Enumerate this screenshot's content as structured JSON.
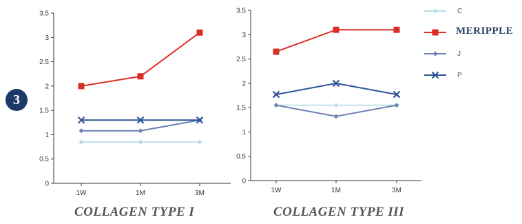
{
  "badge": {
    "number": "3"
  },
  "legend": [
    {
      "label": "C",
      "color": "#b8dde6",
      "marker": "diamond",
      "style": "plain"
    },
    {
      "label": "MERIPPLE",
      "color": "#d92e26",
      "marker": "square",
      "style": "brand"
    },
    {
      "label": "J",
      "color": "#6c82b3",
      "marker": "diamond",
      "style": "plain"
    },
    {
      "label": "P",
      "color": "#2f5595",
      "marker": "x",
      "style": "plain"
    }
  ],
  "chart_data": [
    {
      "type": "line",
      "title": "COLLAGEN TYPE I",
      "xlabel": "",
      "ylabel": "",
      "categories": [
        "1W",
        "1M",
        "3M"
      ],
      "ylim": [
        0,
        3.5
      ],
      "yticks": [
        "0",
        "0.5",
        "1",
        "1.5",
        "2",
        "2.5",
        "3",
        "3.5"
      ],
      "grid": false,
      "series": [
        {
          "name": "C",
          "values": [
            0.85,
            0.85,
            0.85
          ]
        },
        {
          "name": "MERIPPLE",
          "values": [
            2.0,
            2.2,
            3.1
          ]
        },
        {
          "name": "J",
          "values": [
            1.08,
            1.08,
            1.3
          ]
        },
        {
          "name": "P",
          "values": [
            1.3,
            1.3,
            1.3
          ]
        }
      ]
    },
    {
      "type": "line",
      "title": "COLLAGEN TYPE III",
      "xlabel": "",
      "ylabel": "",
      "categories": [
        "1W",
        "1M",
        "3M"
      ],
      "ylim": [
        0,
        3.5
      ],
      "yticks": [
        "0",
        "0.5",
        "1",
        "1.5",
        "2",
        "2.5",
        "3",
        "3.5"
      ],
      "grid": false,
      "series": [
        {
          "name": "C",
          "values": [
            1.55,
            1.55,
            1.55
          ]
        },
        {
          "name": "MERIPPLE",
          "values": [
            2.65,
            3.1,
            3.1
          ]
        },
        {
          "name": "J",
          "values": [
            1.55,
            1.32,
            1.55
          ]
        },
        {
          "name": "P",
          "values": [
            1.77,
            2.0,
            1.77
          ]
        }
      ]
    }
  ]
}
